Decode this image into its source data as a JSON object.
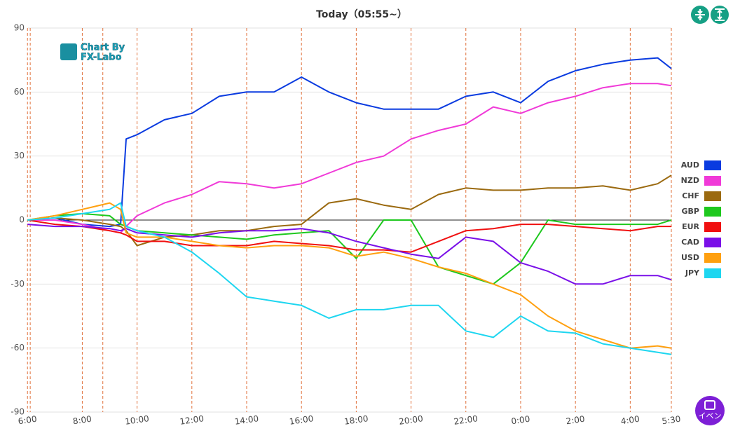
{
  "chart_data": {
    "type": "line",
    "title": "Today（05:55~）",
    "x": [
      6,
      7,
      8,
      9,
      9.4,
      9.6,
      10,
      11,
      12,
      13,
      14,
      15,
      16,
      17,
      18,
      19,
      20,
      21,
      22,
      23,
      24,
      25,
      26,
      27,
      28,
      29,
      29.5
    ],
    "series": [
      {
        "name": "AUD",
        "color": "#0a3be0",
        "values": [
          0,
          1,
          -2,
          -3,
          -2,
          38,
          40,
          47,
          50,
          58,
          60,
          60,
          67,
          60,
          55,
          52,
          52,
          52,
          58,
          60,
          55,
          65,
          70,
          73,
          75,
          76,
          71
        ]
      },
      {
        "name": "NZD",
        "color": "#f03ad8",
        "values": [
          0,
          0,
          -2,
          -5,
          -6,
          -3,
          2,
          8,
          12,
          18,
          17,
          15,
          17,
          22,
          27,
          30,
          38,
          42,
          45,
          53,
          50,
          55,
          58,
          62,
          64,
          64,
          63
        ]
      },
      {
        "name": "CHF",
        "color": "#9b6a10",
        "values": [
          0,
          1,
          0,
          -2,
          -3,
          -5,
          -12,
          -8,
          -7,
          -5,
          -5,
          -3,
          -2,
          8,
          10,
          7,
          5,
          12,
          15,
          14,
          14,
          15,
          15,
          16,
          14,
          17,
          21
        ]
      },
      {
        "name": "GBP",
        "color": "#1ec81e",
        "values": [
          0,
          2,
          3,
          2,
          -2,
          -3,
          -5,
          -6,
          -7,
          -8,
          -9,
          -7,
          -6,
          -5,
          -18,
          0,
          0,
          -22,
          -26,
          -30,
          -20,
          0,
          -2,
          -2,
          -2,
          -2,
          0
        ]
      },
      {
        "name": "EUR",
        "color": "#f01010",
        "values": [
          0,
          -2,
          -3,
          -5,
          -6,
          -7,
          -10,
          -10,
          -12,
          -12,
          -12,
          -10,
          -11,
          -12,
          -14,
          -14,
          -15,
          -10,
          -5,
          -4,
          -2,
          -2,
          -3,
          -4,
          -5,
          -3,
          -3
        ]
      },
      {
        "name": "CAD",
        "color": "#7a10e8",
        "values": [
          -2,
          -3,
          -3,
          -4,
          -5,
          -4,
          -6,
          -7,
          -8,
          -6,
          -5,
          -5,
          -4,
          -6,
          -10,
          -13,
          -16,
          -18,
          -8,
          -10,
          -20,
          -24,
          -30,
          -30,
          -26,
          -26,
          -28
        ]
      },
      {
        "name": "USD",
        "color": "#ffa010",
        "values": [
          0,
          2,
          5,
          8,
          5,
          -6,
          -8,
          -8,
          -10,
          -12,
          -13,
          -12,
          -12,
          -13,
          -17,
          -15,
          -18,
          -22,
          -25,
          -30,
          -35,
          -45,
          -52,
          -56,
          -60,
          -59,
          -60
        ]
      },
      {
        "name": "JPY",
        "color": "#1ed6f0",
        "values": [
          0,
          1,
          3,
          5,
          8,
          -3,
          -5,
          -8,
          -15,
          -25,
          -36,
          -38,
          -40,
          -46,
          -42,
          -42,
          -40,
          -40,
          -52,
          -55,
          -45,
          -52,
          -53,
          -58,
          -60,
          -62,
          -63
        ]
      }
    ],
    "xlim": [
      6.02,
      29.5
    ],
    "xticks": [
      {
        "value": 6,
        "label": "6:00"
      },
      {
        "value": 8,
        "label": "8:00"
      },
      {
        "value": 10,
        "label": "10:00"
      },
      {
        "value": 12,
        "label": "12:00"
      },
      {
        "value": 14,
        "label": "14:00"
      },
      {
        "value": 16,
        "label": "16:00"
      },
      {
        "value": 18,
        "label": "18:00"
      },
      {
        "value": 20,
        "label": "20:00"
      },
      {
        "value": 22,
        "label": "22:00"
      },
      {
        "value": 24,
        "label": "0:00"
      },
      {
        "value": 26,
        "label": "2:00"
      },
      {
        "value": 28,
        "label": "4:00"
      },
      {
        "value": 29.5,
        "label": "5:30"
      }
    ],
    "event_lines": [
      6.1,
      8.75
    ],
    "ylim": [
      -90,
      90
    ],
    "yticks": [
      -90,
      -60,
      -30,
      0,
      30,
      60,
      90
    ],
    "grid": true,
    "legend": "right"
  },
  "watermark": [
    "Chart By",
    "FX-Labo"
  ],
  "event_button": "イベン"
}
